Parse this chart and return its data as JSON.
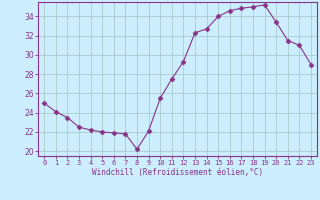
{
  "x": [
    0,
    1,
    2,
    3,
    4,
    5,
    6,
    7,
    8,
    9,
    10,
    11,
    12,
    13,
    14,
    15,
    16,
    17,
    18,
    19,
    20,
    21,
    22,
    23
  ],
  "y": [
    25.0,
    24.1,
    23.5,
    22.5,
    22.2,
    22.0,
    21.9,
    21.8,
    20.2,
    22.1,
    25.5,
    27.5,
    29.3,
    32.3,
    32.7,
    34.0,
    34.6,
    34.85,
    35.0,
    35.2,
    33.4,
    31.5,
    31.0,
    29.0
  ],
  "xlabel": "Windchill (Refroidissement éolien,°C)",
  "xlim": [
    -0.5,
    23.5
  ],
  "ylim": [
    19.5,
    35.5
  ],
  "yticks": [
    20,
    22,
    24,
    26,
    28,
    30,
    32,
    34
  ],
  "xtick_labels": [
    "0",
    "1",
    "2",
    "3",
    "4",
    "5",
    "6",
    "7",
    "8",
    "9",
    "10",
    "11",
    "12",
    "13",
    "14",
    "15",
    "16",
    "17",
    "18",
    "19",
    "20",
    "21",
    "22",
    "23"
  ],
  "line_color": "#883388",
  "marker": "D",
  "marker_size": 2.5,
  "bg_color": "#cceeff",
  "grid_color": "#aacccc",
  "spine_color": "#883388",
  "label_color": "#883388",
  "tick_color": "#883388"
}
